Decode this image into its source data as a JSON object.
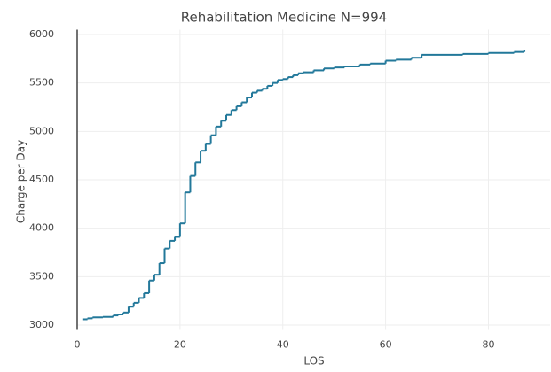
{
  "chart_data": {
    "type": "step",
    "title": "Rehabilitation Medicine N=994",
    "x_label": "LOS",
    "y_label": "Charge per Day",
    "x": [
      1,
      2,
      3,
      5,
      7,
      8,
      9,
      10,
      11,
      12,
      13,
      14,
      15,
      16,
      17,
      18,
      19,
      20,
      21,
      22,
      23,
      24,
      25,
      26,
      27,
      28,
      29,
      30,
      31,
      32,
      33,
      34,
      35,
      36,
      37,
      38,
      39,
      40,
      41,
      42,
      43,
      44,
      46,
      48,
      50,
      52,
      55,
      57,
      60,
      62,
      65,
      67,
      70,
      75,
      80,
      85,
      87
    ],
    "series": [
      {
        "name": "Charge per Day",
        "color": "#22789a",
        "values": [
          3060,
          3070,
          3080,
          3085,
          3100,
          3110,
          3130,
          3190,
          3230,
          3280,
          3330,
          3460,
          3520,
          3640,
          3790,
          3870,
          3910,
          4050,
          4370,
          4540,
          4680,
          4800,
          4870,
          4960,
          5050,
          5110,
          5170,
          5220,
          5260,
          5300,
          5350,
          5400,
          5420,
          5440,
          5470,
          5500,
          5530,
          5540,
          5560,
          5580,
          5600,
          5610,
          5630,
          5650,
          5660,
          5670,
          5690,
          5700,
          5730,
          5740,
          5760,
          5790,
          5790,
          5800,
          5810,
          5820,
          5830
        ]
      }
    ],
    "xlim": [
      0,
      92
    ],
    "ylim": [
      2950,
      6050
    ],
    "xticks": [
      0,
      20,
      40,
      60,
      80
    ],
    "yticks": [
      3000,
      3500,
      4000,
      4500,
      5000,
      5500,
      6000
    ],
    "grid": true
  }
}
